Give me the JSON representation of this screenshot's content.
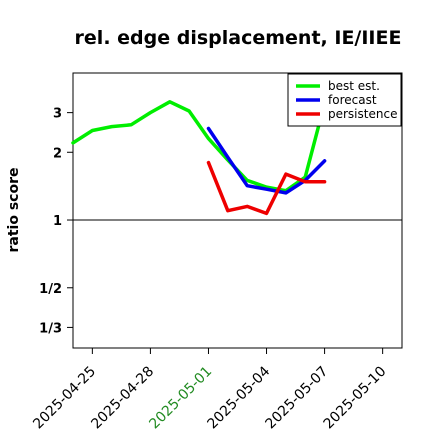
{
  "chart_data": {
    "type": "line",
    "title": "rel. edge displacement, IE/IIEE",
    "ylabel": "ratio score",
    "xlabel": "",
    "y_scale": "log2",
    "ylim": [
      0.27,
      4.5
    ],
    "xlim": [
      "2025-04-24",
      "2025-05-11"
    ],
    "reference_line": 1,
    "grid": false,
    "legend_position": "top-right",
    "y_ticks": [
      {
        "value": 3,
        "label": "3"
      },
      {
        "value": 2,
        "label": "2"
      },
      {
        "value": 1,
        "label": "1"
      },
      {
        "value": 0.5,
        "label": "1/2"
      },
      {
        "value": 0.3333,
        "label": "1/3"
      }
    ],
    "x_ticks": [
      {
        "value": "2025-04-25",
        "label": "2025-04-25",
        "color": "#000000"
      },
      {
        "value": "2025-04-28",
        "label": "2025-04-28",
        "color": "#000000"
      },
      {
        "value": "2025-05-01",
        "label": "2025-05-01",
        "color": "#228B22"
      },
      {
        "value": "2025-05-04",
        "label": "2025-05-04",
        "color": "#000000"
      },
      {
        "value": "2025-05-07",
        "label": "2025-05-07",
        "color": "#000000"
      },
      {
        "value": "2025-05-10",
        "label": "2025-05-10",
        "color": "#000000"
      }
    ],
    "series": [
      {
        "name": "best est.",
        "color": "#00ee00",
        "points": [
          [
            "2025-04-24",
            2.2
          ],
          [
            "2025-04-25",
            2.5
          ],
          [
            "2025-04-26",
            2.6
          ],
          [
            "2025-04-27",
            2.65
          ],
          [
            "2025-04-28",
            3.0
          ],
          [
            "2025-04-29",
            3.35
          ],
          [
            "2025-04-30",
            3.05
          ],
          [
            "2025-05-01",
            2.3
          ],
          [
            "2025-05-02",
            1.85
          ],
          [
            "2025-05-03",
            1.5
          ],
          [
            "2025-05-04",
            1.4
          ],
          [
            "2025-05-05",
            1.35
          ],
          [
            "2025-05-06",
            1.55
          ],
          [
            "2025-05-07",
            3.3
          ]
        ]
      },
      {
        "name": "forecast",
        "color": "#0000ee",
        "points": [
          [
            "2025-05-01",
            2.55
          ],
          [
            "2025-05-02",
            1.9
          ],
          [
            "2025-05-03",
            1.42
          ],
          [
            "2025-05-04",
            1.37
          ],
          [
            "2025-05-05",
            1.32
          ],
          [
            "2025-05-06",
            1.5
          ],
          [
            "2025-05-07",
            1.83
          ]
        ]
      },
      {
        "name": "persistence",
        "color": "#ee0000",
        "points": [
          [
            "2025-05-01",
            1.8
          ],
          [
            "2025-05-02",
            1.1
          ],
          [
            "2025-05-03",
            1.15
          ],
          [
            "2025-05-04",
            1.07
          ],
          [
            "2025-05-05",
            1.6
          ],
          [
            "2025-05-06",
            1.48
          ],
          [
            "2025-05-07",
            1.48
          ]
        ]
      }
    ]
  }
}
